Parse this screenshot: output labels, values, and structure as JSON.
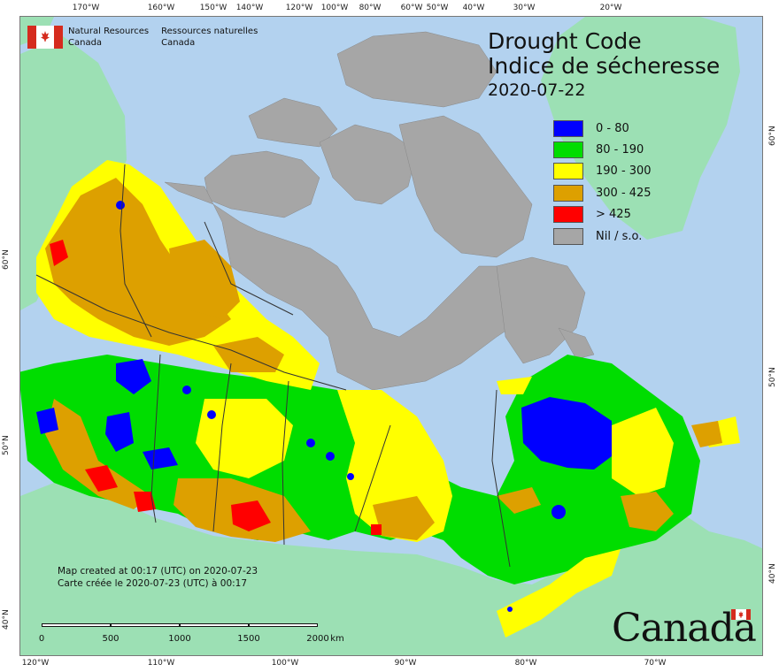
{
  "header": {
    "dept_en_line1": "Natural Resources",
    "dept_en_line2": "Canada",
    "dept_fr_line1": "Ressources naturelles",
    "dept_fr_line2": "Canada"
  },
  "title": {
    "line_en": "Drought Code",
    "line_fr": "Indice de sécheresse",
    "date": "2020-07-22"
  },
  "legend": [
    {
      "label": "0 - 80",
      "color": "#0000ff"
    },
    {
      "label": "80 - 190",
      "color": "#00dd00"
    },
    {
      "label": "190 - 300",
      "color": "#ffff00"
    },
    {
      "label": "300 - 425",
      "color": "#dda000"
    },
    {
      "label": "> 425",
      "color": "#ff0000"
    },
    {
      "label": "Nil / s.o.",
      "color": "#a6a6a6"
    }
  ],
  "credit": {
    "line_en": "Map created at 00:17 (UTC) on 2020-07-23",
    "line_fr": "Carte créée le 2020-07-23 (UTC) à 00:17"
  },
  "scale": {
    "labels": [
      "0",
      "500",
      "1000",
      "1500",
      "2000"
    ],
    "unit": "km"
  },
  "wordmark": "Canada",
  "graticule": {
    "top": [
      "170°W",
      "160°W",
      "150°W",
      "140°W",
      "120°W",
      "100°W",
      "80°W",
      "60°W",
      "50°W",
      "40°W",
      "30°W",
      "20°W"
    ],
    "bottom": [
      "120°W",
      "110°W",
      "100°W",
      "90°W",
      "80°W",
      "70°W"
    ],
    "left": [
      "60°N",
      "50°N",
      "40°N"
    ],
    "right": [
      "60°N",
      "50°N",
      "40°N"
    ]
  },
  "colors": {
    "ocean": "#b3d2ef",
    "foreign_land": "#9ce0b4",
    "border": "#333333"
  }
}
